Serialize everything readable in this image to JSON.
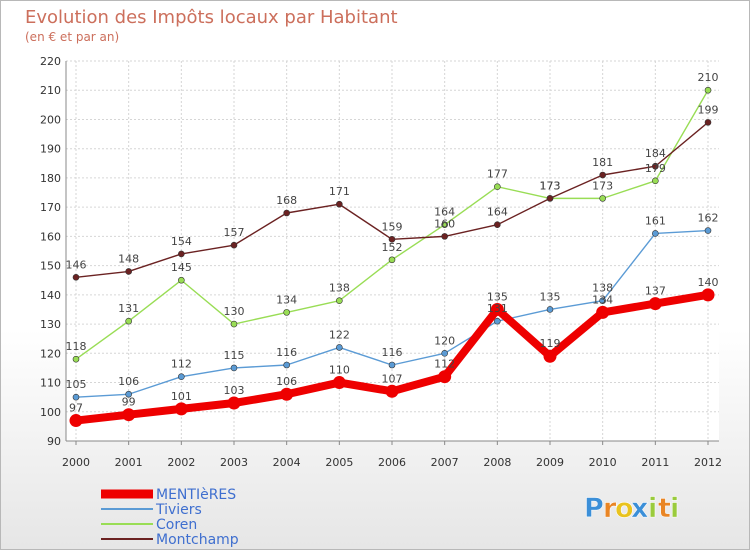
{
  "chart_data": {
    "type": "line",
    "title": "Evolution des Impôts locaux par Habitant",
    "subtitle": "(en € et par an)",
    "xlabel": "",
    "ylabel": "",
    "categories": [
      "2000",
      "2001",
      "2002",
      "2003",
      "2004",
      "2005",
      "2006",
      "2007",
      "2008",
      "2009",
      "2010",
      "2011",
      "2012"
    ],
    "ylim": [
      90,
      220
    ],
    "yticks": [
      90,
      100,
      110,
      120,
      130,
      140,
      150,
      160,
      170,
      180,
      190,
      200,
      210,
      220
    ],
    "grid": true,
    "legend_position": "bottom-left",
    "series": [
      {
        "name": "MENTIèRES",
        "color": "#ee0000",
        "width": "thick",
        "values": [
          97,
          99,
          101,
          103,
          106,
          110,
          107,
          112,
          135,
          119,
          134,
          137,
          140
        ]
      },
      {
        "name": "Tiviers",
        "color": "#5b9bd5",
        "values": [
          105,
          106,
          112,
          115,
          116,
          122,
          116,
          120,
          131,
          135,
          138,
          161,
          162
        ]
      },
      {
        "name": "Coren",
        "color": "#99dd55",
        "values": [
          118,
          131,
          145,
          130,
          134,
          138,
          152,
          164,
          177,
          173,
          173,
          179,
          210
        ]
      },
      {
        "name": "Montchamp",
        "color": "#6b2222",
        "values": [
          146,
          148,
          154,
          157,
          168,
          171,
          159,
          160,
          164,
          173,
          181,
          184,
          199
        ]
      }
    ]
  },
  "logo": {
    "letters": [
      "P",
      "r",
      "o",
      "x",
      "i",
      "t",
      "i"
    ],
    "colors": [
      "#3b8fd8",
      "#e98524",
      "#e9c31e",
      "#3b8fd8",
      "#9acb3c",
      "#e98524",
      "#9acb3c"
    ]
  }
}
